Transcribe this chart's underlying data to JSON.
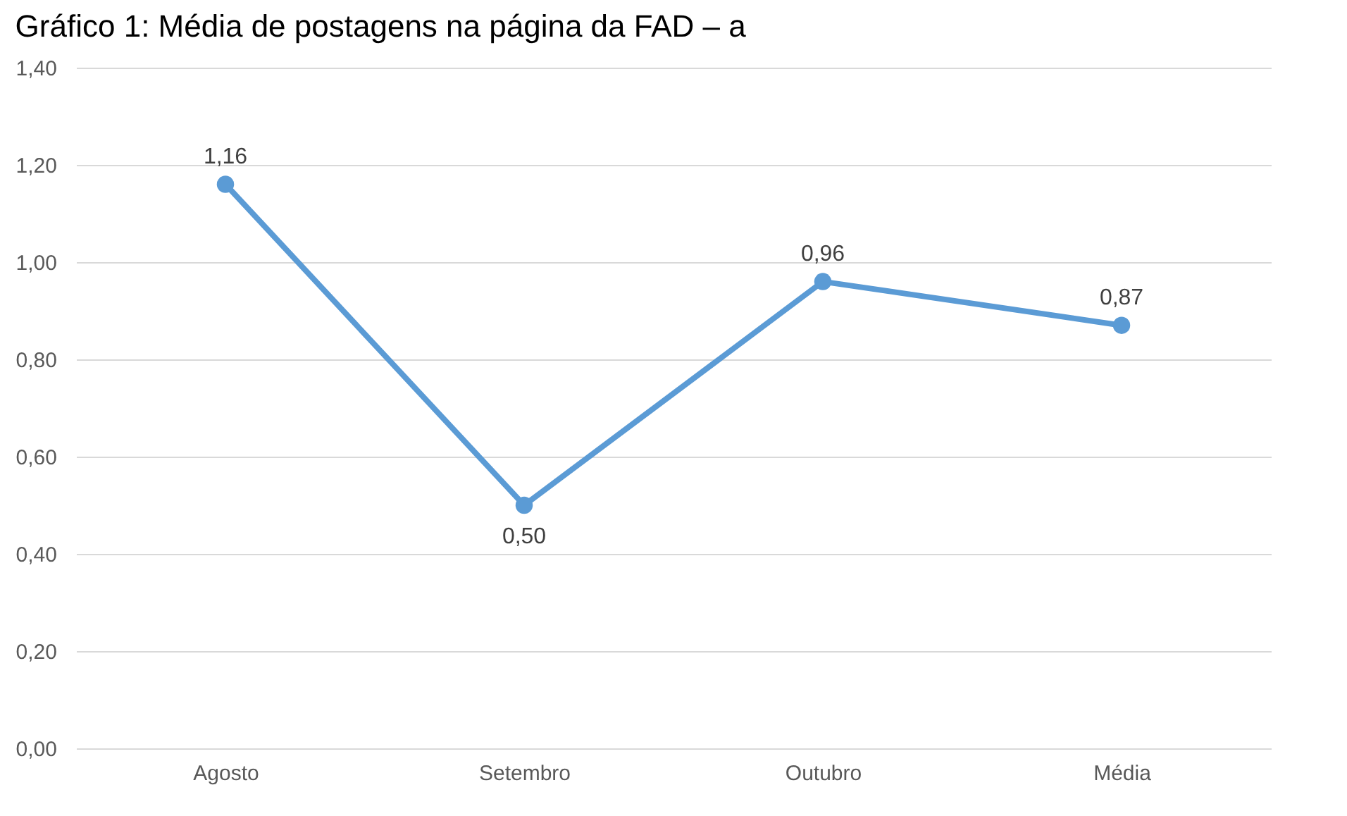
{
  "chart_data": {
    "type": "line",
    "title": "Gráfico 1: Média de postagens na página da FAD – a",
    "categories": [
      "Agosto",
      "Setembro",
      "Outubro",
      "Média"
    ],
    "series": [
      {
        "color": "#5b9bd5",
        "values": [
          1.16,
          0.5,
          0.96,
          0.87
        ],
        "value_labels": [
          "1,16",
          "0,50",
          "0,96",
          "0,87"
        ]
      }
    ],
    "ylim": [
      0,
      1.4
    ],
    "yticks": [
      {
        "value": 0,
        "label": "0,00"
      },
      {
        "value": 0.2,
        "label": "0,20"
      },
      {
        "value": 0.4,
        "label": "0,40"
      },
      {
        "value": 0.6,
        "label": "0,60"
      },
      {
        "value": 0.8,
        "label": "0,80"
      },
      {
        "value": 1,
        "label": "1,00"
      },
      {
        "value": 1.2,
        "label": "1,20"
      },
      {
        "value": 1.4,
        "label": "1,40"
      }
    ],
    "grid": "y",
    "marker": "circle"
  }
}
